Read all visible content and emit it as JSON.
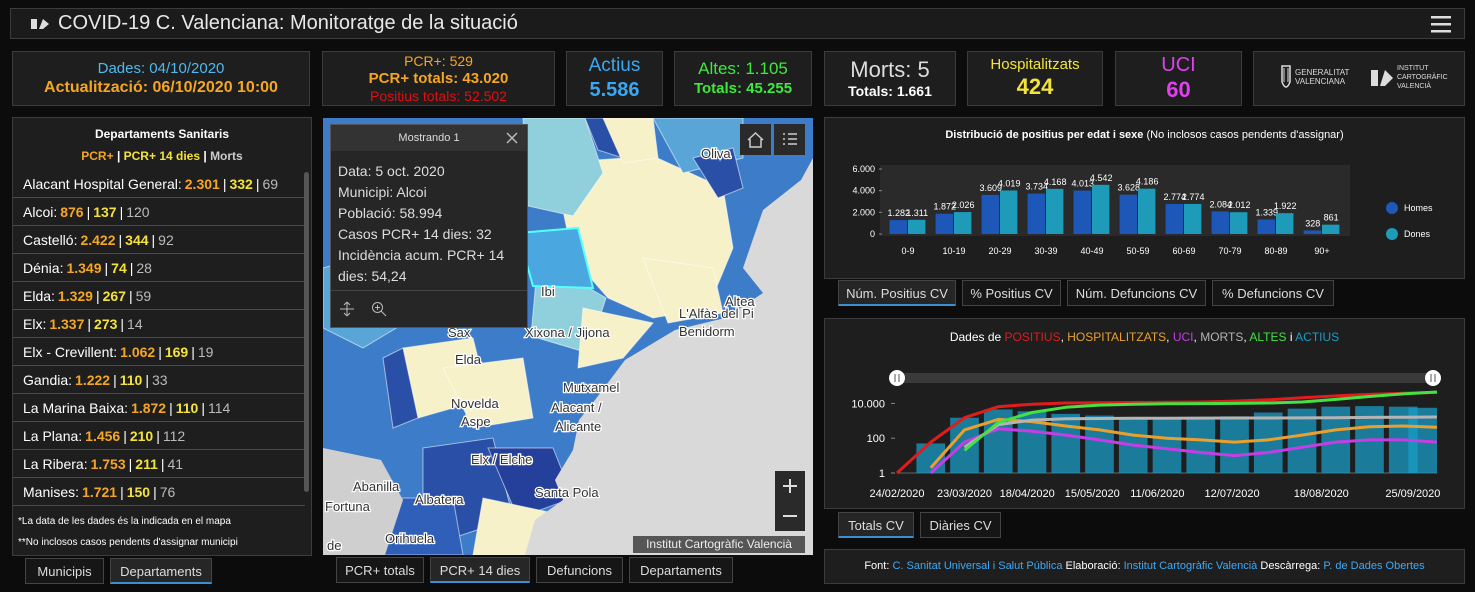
{
  "header": {
    "title": "COVID-19 C. Valenciana: Monitoratge de la situació"
  },
  "cards": {
    "dates": {
      "data": "Dades: 04/10/2020",
      "update": "Actualització: 06/10/2020 10:00"
    },
    "pcr": {
      "daily": "PCR+: 529",
      "total": "PCR+ totals: 43.020",
      "positives": "Positius totals: 52.502"
    },
    "active": {
      "label": "Actius",
      "value": "5.586"
    },
    "discharges": {
      "daily": "Altes: 1.105",
      "total": "Totals: 45.255"
    },
    "deaths": {
      "daily": "Morts: 5",
      "total": "Totals: 1.661"
    },
    "hospital": {
      "label": "Hospitalitzats",
      "value": "424"
    },
    "icu": {
      "label": "UCI",
      "value": "60"
    }
  },
  "logos": {
    "gva": [
      "GENERALITAT",
      "VALENCIANA"
    ],
    "icv": [
      "INSTITUT",
      "CARTOGRÀFIC",
      "VALENCIÀ"
    ]
  },
  "departments": {
    "title": "Departaments Sanitaris",
    "legend": [
      "PCR+",
      "PCR+ 14 dies",
      "Morts"
    ],
    "separator": "|",
    "rows": [
      [
        "Alacant Hospital General:",
        "2.301",
        "332",
        "69"
      ],
      [
        "Alcoi:",
        "876",
        "137",
        "120"
      ],
      [
        "Castelló:",
        "2.422",
        "344",
        "92"
      ],
      [
        "Dénia:",
        "1.349",
        "74",
        "28"
      ],
      [
        "Elda:",
        "1.329",
        "267",
        "59"
      ],
      [
        "Elx:",
        "1.337",
        "273",
        "14"
      ],
      [
        "Elx - Crevillent:",
        "1.062",
        "169",
        "19"
      ],
      [
        "Gandia:",
        "1.222",
        "110",
        "33"
      ],
      [
        "La Marina Baixa:",
        "1.872",
        "110",
        "114"
      ],
      [
        "La Plana:",
        "1.456",
        "210",
        "112"
      ],
      [
        "La Ribera:",
        "1.753",
        "211",
        "41"
      ],
      [
        "Manises:",
        "1.721",
        "150",
        "76"
      ]
    ],
    "notes": [
      "*La data de les dades és la indicada en el mapa",
      "**No inclosos casos pendents d'assignar municipi"
    ],
    "tabs": [
      "Municipis",
      "Departaments"
    ],
    "active_tab": 1
  },
  "map": {
    "popup": {
      "title": "Mostrando 1",
      "lines": [
        "Data: 5 oct. 2020",
        "Municipi: Alcoi",
        "Població: 58.994",
        "Casos PCR+ 14 dies: 32",
        "Incidència acum. PCR+ 14",
        "dies: 54,24"
      ]
    },
    "labels": [
      "Oliva",
      "Ibi",
      "Xixona / Jijona",
      "Sax",
      "Elda",
      "Novelda",
      "Aspe",
      "Mutxamel",
      "Alacant /",
      "Alicante",
      "Elx / Elche",
      "Abanilla",
      "Fortuna",
      "Santa Pola",
      "Orihuela",
      "Albatera",
      "Altea",
      "Benidorm",
      "L'Alfàs del Pi",
      "de"
    ],
    "attribution": "Institut Cartogràfic Valencià",
    "tabs": [
      "PCR+ totals",
      "PCR+ 14 dies",
      "Defuncions",
      "Departaments"
    ],
    "active_tab": 1
  },
  "chart_data": [
    {
      "type": "bar",
      "title": "Distribució de positius per edat i sexe",
      "subtitle": "(No inclosos casos pendents d'assignar)",
      "categories": [
        "0-9",
        "10-19",
        "20-29",
        "30-39",
        "40-49",
        "50-59",
        "60-69",
        "70-79",
        "80-89",
        "90+"
      ],
      "series": [
        {
          "name": "Homes",
          "color": "#1d57b8",
          "values": [
            1282,
            1872,
            3609,
            3734,
            4013,
            3628,
            2774,
            2084,
            1339,
            328
          ],
          "value_labels": [
            "1.282",
            "1.872",
            "3.609",
            "3.734",
            "4.013",
            "3.628",
            "2.774",
            "2.084",
            "1.339",
            "328"
          ]
        },
        {
          "name": "Dones",
          "color": "#1e9bb8",
          "values": [
            1311,
            2026,
            4019,
            4168,
            4542,
            4186,
            2774,
            2012,
            1922,
            861
          ],
          "value_labels": [
            "1.311",
            "2.026",
            "4.019",
            "4.168",
            "4.542",
            "4.186",
            "2.774",
            "2.012",
            "1.922",
            "861"
          ]
        }
      ],
      "ylim": [
        0,
        6000
      ],
      "yticks": [
        0,
        {
          "value": 2000,
          "label": "2.000"
        },
        {
          "value": 4000,
          "label": "4.000"
        },
        {
          "value": 6000,
          "label": "6.000"
        }
      ],
      "grid": false,
      "legend": "right"
    },
    {
      "type": "line",
      "title": "Dades de",
      "title_joiners": [
        ",",
        "i"
      ],
      "x": [
        "24/02/2020",
        "09/03/2020",
        "23/03/2020",
        "06/04/2020",
        "20/04/2020",
        "04/05/2020",
        "18/05/2020",
        "01/06/2020",
        "15/06/2020",
        "29/06/2020",
        "13/07/2020",
        "27/07/2020",
        "10/08/2020",
        "24/08/2020",
        "07/09/2020",
        "21/09/2020",
        "05/10/2020"
      ],
      "xlim": [
        "24/02/2020",
        "05/10/2020"
      ],
      "xticks": [
        "24/02/2020",
        "23/03/2020",
        "18/04/2020",
        "15/05/2020",
        "11/06/2020",
        "12/07/2020",
        "18/08/2020",
        "25/09/2020"
      ],
      "ylim": [
        1,
        100000
      ],
      "yticks": [
        1,
        100,
        {
          "value": 10000,
          "label": "10.000"
        }
      ],
      "log_y": true,
      "grid": false,
      "series": [
        {
          "name": "POSITIUS",
          "color": "#e01c1c",
          "values": [
            1,
            60,
            1500,
            6500,
            9000,
            10500,
            11000,
            11300,
            11500,
            12000,
            13500,
            16000,
            21000,
            27000,
            33000,
            38000,
            43020
          ]
        },
        {
          "name": "HOSPITALITZATS",
          "color": "#e8a030",
          "values": [
            null,
            2,
            300,
            1200,
            900,
            500,
            300,
            150,
            100,
            80,
            60,
            80,
            150,
            300,
            450,
            500,
            424
          ]
        },
        {
          "name": "UCI",
          "color": "#c43ee6",
          "values": [
            null,
            1,
            60,
            350,
            250,
            150,
            80,
            40,
            25,
            15,
            10,
            15,
            30,
            60,
            80,
            80,
            60
          ]
        },
        {
          "name": "MORTS",
          "color": "#b4b4b4",
          "values": [
            null,
            null,
            30,
            600,
            1100,
            1300,
            1350,
            1400,
            1420,
            1430,
            1440,
            1450,
            1470,
            1500,
            1560,
            1610,
            1661
          ]
        },
        {
          "name": "ALTES",
          "color": "#44e044",
          "values": [
            null,
            null,
            20,
            800,
            3000,
            6000,
            8000,
            9000,
            9500,
            9800,
            10000,
            10500,
            12000,
            17000,
            25000,
            35000,
            45255
          ]
        },
        {
          "name": "ACTIUS",
          "color": "#1a9cc4",
          "kind": "bar",
          "values": [
            1,
            50,
            1500,
            4500,
            3500,
            2500,
            2000,
            1600,
            1400,
            1300,
            1800,
            3000,
            5000,
            6500,
            7000,
            6500,
            5586
          ]
        }
      ]
    }
  ],
  "age_panel": {
    "tabs": [
      "Núm. Positius CV",
      "% Positius CV",
      "Núm. Defuncions CV",
      "% Defuncions CV"
    ],
    "active_tab": 0
  },
  "time_panel": {
    "tabs": [
      "Totals CV",
      "Diàries CV"
    ],
    "active_tab": 0
  },
  "footer": {
    "labels": [
      "Font:",
      "Elaboració:",
      "Descàrrega:"
    ],
    "links": [
      "C. Sanitat Universal i Salut Pública",
      "Institut Cartogràfic Valencià",
      "P. de Dades Obertes"
    ]
  }
}
